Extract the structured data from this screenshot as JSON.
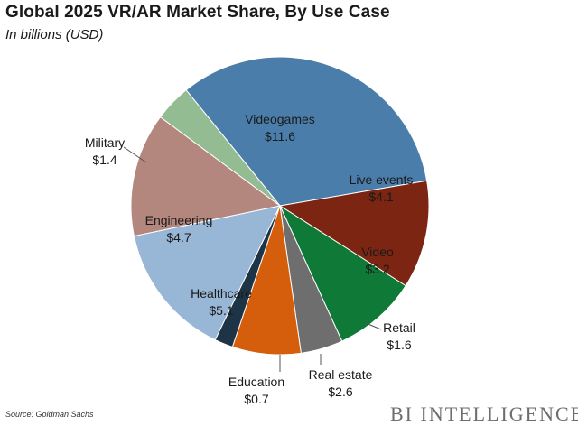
{
  "header": {
    "title": "Global 2025 VR/AR Market Share, By Use Case",
    "subtitle": "In billions (USD)"
  },
  "footer": {
    "source": "Source: Goldman Sachs",
    "brand": "BI INTELLIGENCE"
  },
  "chart_data": {
    "type": "pie",
    "title": "Global 2025 VR/AR Market Share, By Use Case",
    "subtitle": "In billions (USD)",
    "slices": [
      {
        "label": "Videogames",
        "value_label": "$11.6",
        "value": 11.6,
        "color": "#4a7da9"
      },
      {
        "label": "Live events",
        "value_label": "$4.1",
        "value": 4.1,
        "color": "#7b2512"
      },
      {
        "label": "Video",
        "value_label": "$3.2",
        "value": 3.2,
        "color": "#0f7a37"
      },
      {
        "label": "Retail",
        "value_label": "$1.6",
        "value": 1.6,
        "color": "#6e6e6e"
      },
      {
        "label": "Real estate",
        "value_label": "$2.6",
        "value": 2.6,
        "color": "#d55e0c"
      },
      {
        "label": "Education",
        "value_label": "$0.7",
        "value": 0.7,
        "color": "#1c3446"
      },
      {
        "label": "Healthcare",
        "value_label": "$5.1",
        "value": 5.1,
        "color": "#98b6d6"
      },
      {
        "label": "Engineering",
        "value_label": "$4.7",
        "value": 4.7,
        "color": "#b4877e"
      },
      {
        "label": "Military",
        "value_label": "$1.4",
        "value": 1.4,
        "color": "#93bc93"
      }
    ]
  }
}
